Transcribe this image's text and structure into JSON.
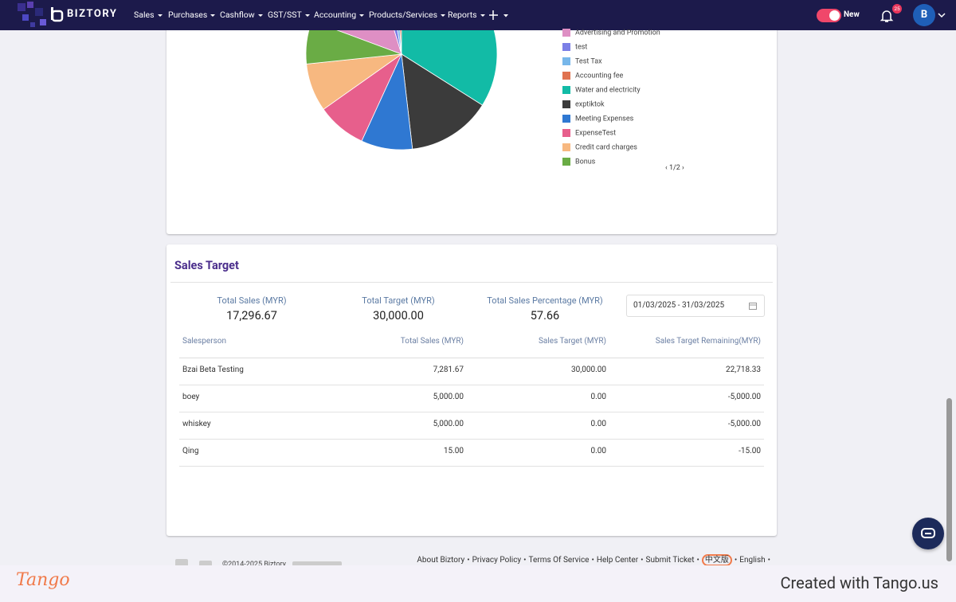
{
  "nav": {
    "brand": "BIZTORY",
    "menu": [
      "Sales",
      "Purchases",
      "Cashflow",
      "GST/SST",
      "Accounting",
      "Products/Services",
      "Reports"
    ],
    "toggle_label": "New",
    "badge": "25",
    "avatar": "B"
  },
  "pie": {
    "type": "pie",
    "items": [
      {
        "name": "Advertising and Promotion",
        "color": "#de8fc4",
        "value": 14
      },
      {
        "name": "test",
        "color": "#7b7fe6",
        "value": 2
      },
      {
        "name": "Test Tax",
        "color": "#77b7ea",
        "value": 1.5
      },
      {
        "name": "Accounting fee",
        "color": "#e07350",
        "value": 1
      },
      {
        "name": "Water and electricity",
        "color": "#12bba6",
        "value": 32.5
      },
      {
        "name": "exptiktok",
        "color": "#3b3b3b",
        "value": 13.6
      },
      {
        "name": "Meeting Expenses",
        "color": "#2f78d2",
        "value": 8.3
      },
      {
        "name": "ExpenseTest",
        "color": "#e75f8c",
        "value": 8
      },
      {
        "name": "Credit card charges",
        "color": "#f7b880",
        "value": 7.8
      },
      {
        "name": "Bonus",
        "color": "#6aac45",
        "value": 7
      }
    ],
    "pager": "1/2"
  },
  "sales_target": {
    "title": "Sales Target",
    "summary": [
      {
        "label": "Total Sales (MYR)",
        "value": "17,296.67"
      },
      {
        "label": "Total Target (MYR)",
        "value": "30,000.00"
      },
      {
        "label": "Total Sales Percentage (MYR)",
        "value": "57.66"
      }
    ],
    "date_range": "01/03/2025 - 31/03/2025",
    "table": {
      "headers": [
        "Salesperson",
        "Total Sales (MYR)",
        "Sales Target (MYR)",
        "Sales Target Remaining(MYR)"
      ],
      "rows": [
        [
          "Bzai Beta Testing",
          "7,281.67",
          "30,000.00",
          "22,718.33"
        ],
        [
          "boey",
          "5,000.00",
          "0.00",
          "-5,000.00"
        ],
        [
          "whiskey",
          "5,000.00",
          "0.00",
          "-5,000.00"
        ],
        [
          "Qing",
          "15.00",
          "0.00",
          "-15.00"
        ]
      ]
    }
  },
  "footer": {
    "links": [
      "About Biztory",
      "Privacy Policy",
      "Terms Of Service",
      "Help Center",
      "Submit Ticket",
      "中文版",
      "English"
    ],
    "separator": "•",
    "copyright": "©2014-2025 Biztory"
  },
  "tango": {
    "logo": "Tango",
    "credit": "Created with Tango.us"
  }
}
